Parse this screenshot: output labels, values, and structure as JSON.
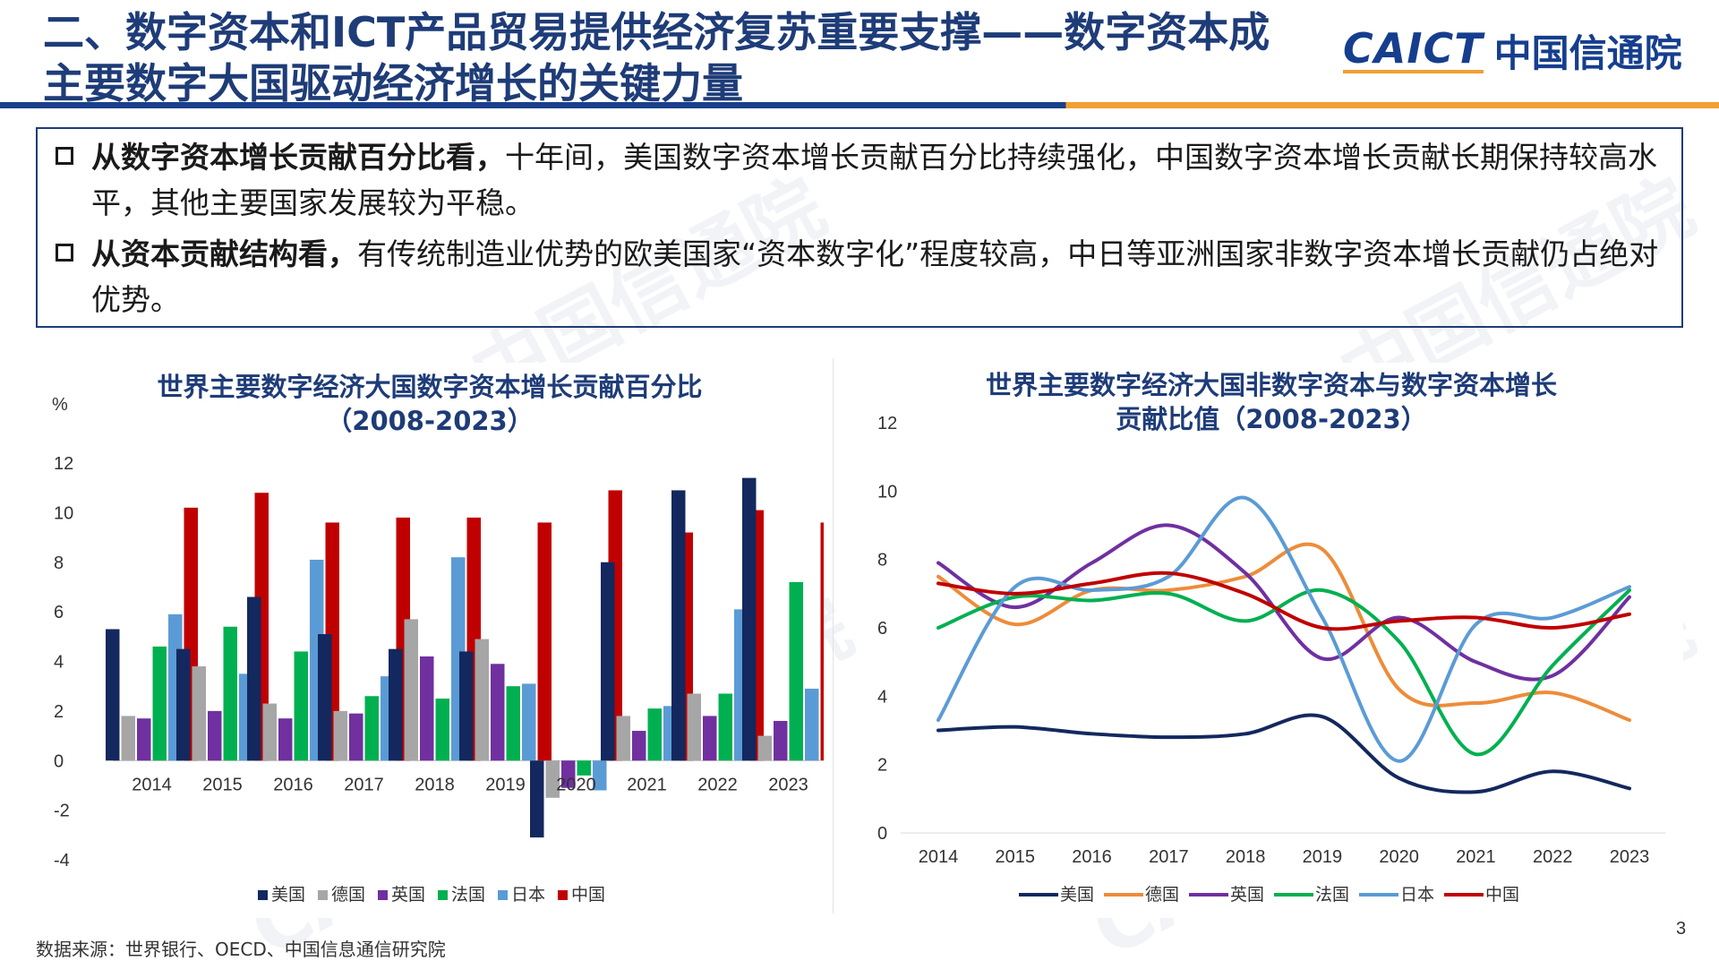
{
  "header": {
    "title_line1": "二、数字资本和ICT产品贸易提供经济复苏重要支撑——数字资本成",
    "title_line2": "主要数字大国驱动经济增长的关键力量",
    "logo_en": "CAICT",
    "logo_cn": "中国信通院"
  },
  "summary": {
    "bullets": [
      {
        "bold": "从数字资本增长贡献百分比看，",
        "text": "十年间，美国数字资本增长贡献百分比持续强化，中国数字资本增长贡献长期保持较高水平，其他主要国家发展较为平稳。"
      },
      {
        "bold": "从资本贡献结构看，",
        "text": "有传统制造业优势的欧美国家“资本数字化”程度较高，中日等亚洲国家非数字资本增长贡献仍占绝对优势。"
      }
    ]
  },
  "colors": {
    "美国": "#13285e",
    "德国": "#a6a6a6",
    "英国": "#7030a0",
    "法国": "#00b050",
    "日本": "#5b9bd5",
    "中国": "#c00000",
    "line_德国": "#ed8c3a",
    "title": "#1e3c78"
  },
  "chart_data": [
    {
      "type": "bar",
      "title_line1": "世界主要数字经济大国数字资本增长贡献百分比",
      "title_line2": "（2008-2023）",
      "ylabel": "%",
      "ylim": [
        -4,
        12
      ],
      "yticks": [
        -4,
        -2,
        0,
        2,
        4,
        6,
        8,
        10,
        12
      ],
      "categories": [
        "2014",
        "2015",
        "2016",
        "2017",
        "2018",
        "2019",
        "2020",
        "2021",
        "2022",
        "2023"
      ],
      "legend_position": "bottom",
      "series": [
        {
          "name": "美国",
          "values": [
            5.3,
            4.5,
            6.6,
            5.1,
            4.5,
            4.4,
            -3.1,
            8.0,
            10.9,
            11.4
          ]
        },
        {
          "name": "德国",
          "values": [
            1.8,
            3.8,
            2.3,
            2.0,
            5.7,
            4.9,
            -1.5,
            1.8,
            2.7,
            1.0
          ]
        },
        {
          "name": "英国",
          "values": [
            1.7,
            2.0,
            1.7,
            1.9,
            4.2,
            3.9,
            -1.1,
            1.2,
            1.8,
            1.6
          ]
        },
        {
          "name": "法国",
          "values": [
            4.6,
            5.4,
            4.4,
            2.6,
            2.5,
            3.0,
            -0.6,
            2.1,
            2.7,
            7.2
          ]
        },
        {
          "name": "日本",
          "values": [
            5.9,
            3.5,
            8.1,
            3.4,
            8.2,
            3.1,
            -1.2,
            2.2,
            6.1,
            2.9
          ]
        },
        {
          "name": "中国",
          "values": [
            10.2,
            10.8,
            9.6,
            9.8,
            9.8,
            9.6,
            10.9,
            9.2,
            10.1,
            9.6
          ]
        }
      ]
    },
    {
      "type": "line",
      "title_line1": "世界主要数字经济大国非数字资本与数字资本增长",
      "title_line2": "贡献比值（2008-2023）",
      "ylim": [
        0,
        12
      ],
      "yticks": [
        0,
        2,
        4,
        6,
        8,
        10,
        12
      ],
      "categories": [
        "2014",
        "2015",
        "2016",
        "2017",
        "2018",
        "2019",
        "2020",
        "2021",
        "2022",
        "2023"
      ],
      "legend_position": "bottom",
      "series": [
        {
          "name": "美国",
          "values": [
            3.0,
            3.1,
            2.9,
            2.8,
            2.9,
            3.4,
            1.6,
            1.2,
            1.8,
            1.3
          ]
        },
        {
          "name": "德国",
          "values": [
            7.5,
            6.1,
            7.1,
            7.1,
            7.5,
            8.3,
            4.2,
            3.8,
            4.1,
            3.3
          ]
        },
        {
          "name": "英国",
          "values": [
            7.9,
            6.6,
            7.9,
            9.0,
            7.6,
            5.1,
            6.3,
            5.0,
            4.6,
            6.9
          ]
        },
        {
          "name": "法国",
          "values": [
            6.0,
            6.9,
            6.8,
            7.0,
            6.2,
            7.1,
            5.6,
            2.3,
            4.9,
            7.1
          ]
        },
        {
          "name": "日本",
          "values": [
            3.3,
            7.2,
            7.1,
            7.5,
            9.8,
            6.3,
            2.1,
            6.1,
            6.3,
            7.2
          ]
        },
        {
          "name": "中国",
          "values": [
            7.3,
            7.0,
            7.3,
            7.6,
            7.0,
            6.0,
            6.2,
            6.3,
            6.0,
            6.4
          ]
        }
      ]
    }
  ],
  "footer": {
    "source": "数据来源：世界银行、OECD、中国信息通信研究院",
    "page": "3"
  }
}
